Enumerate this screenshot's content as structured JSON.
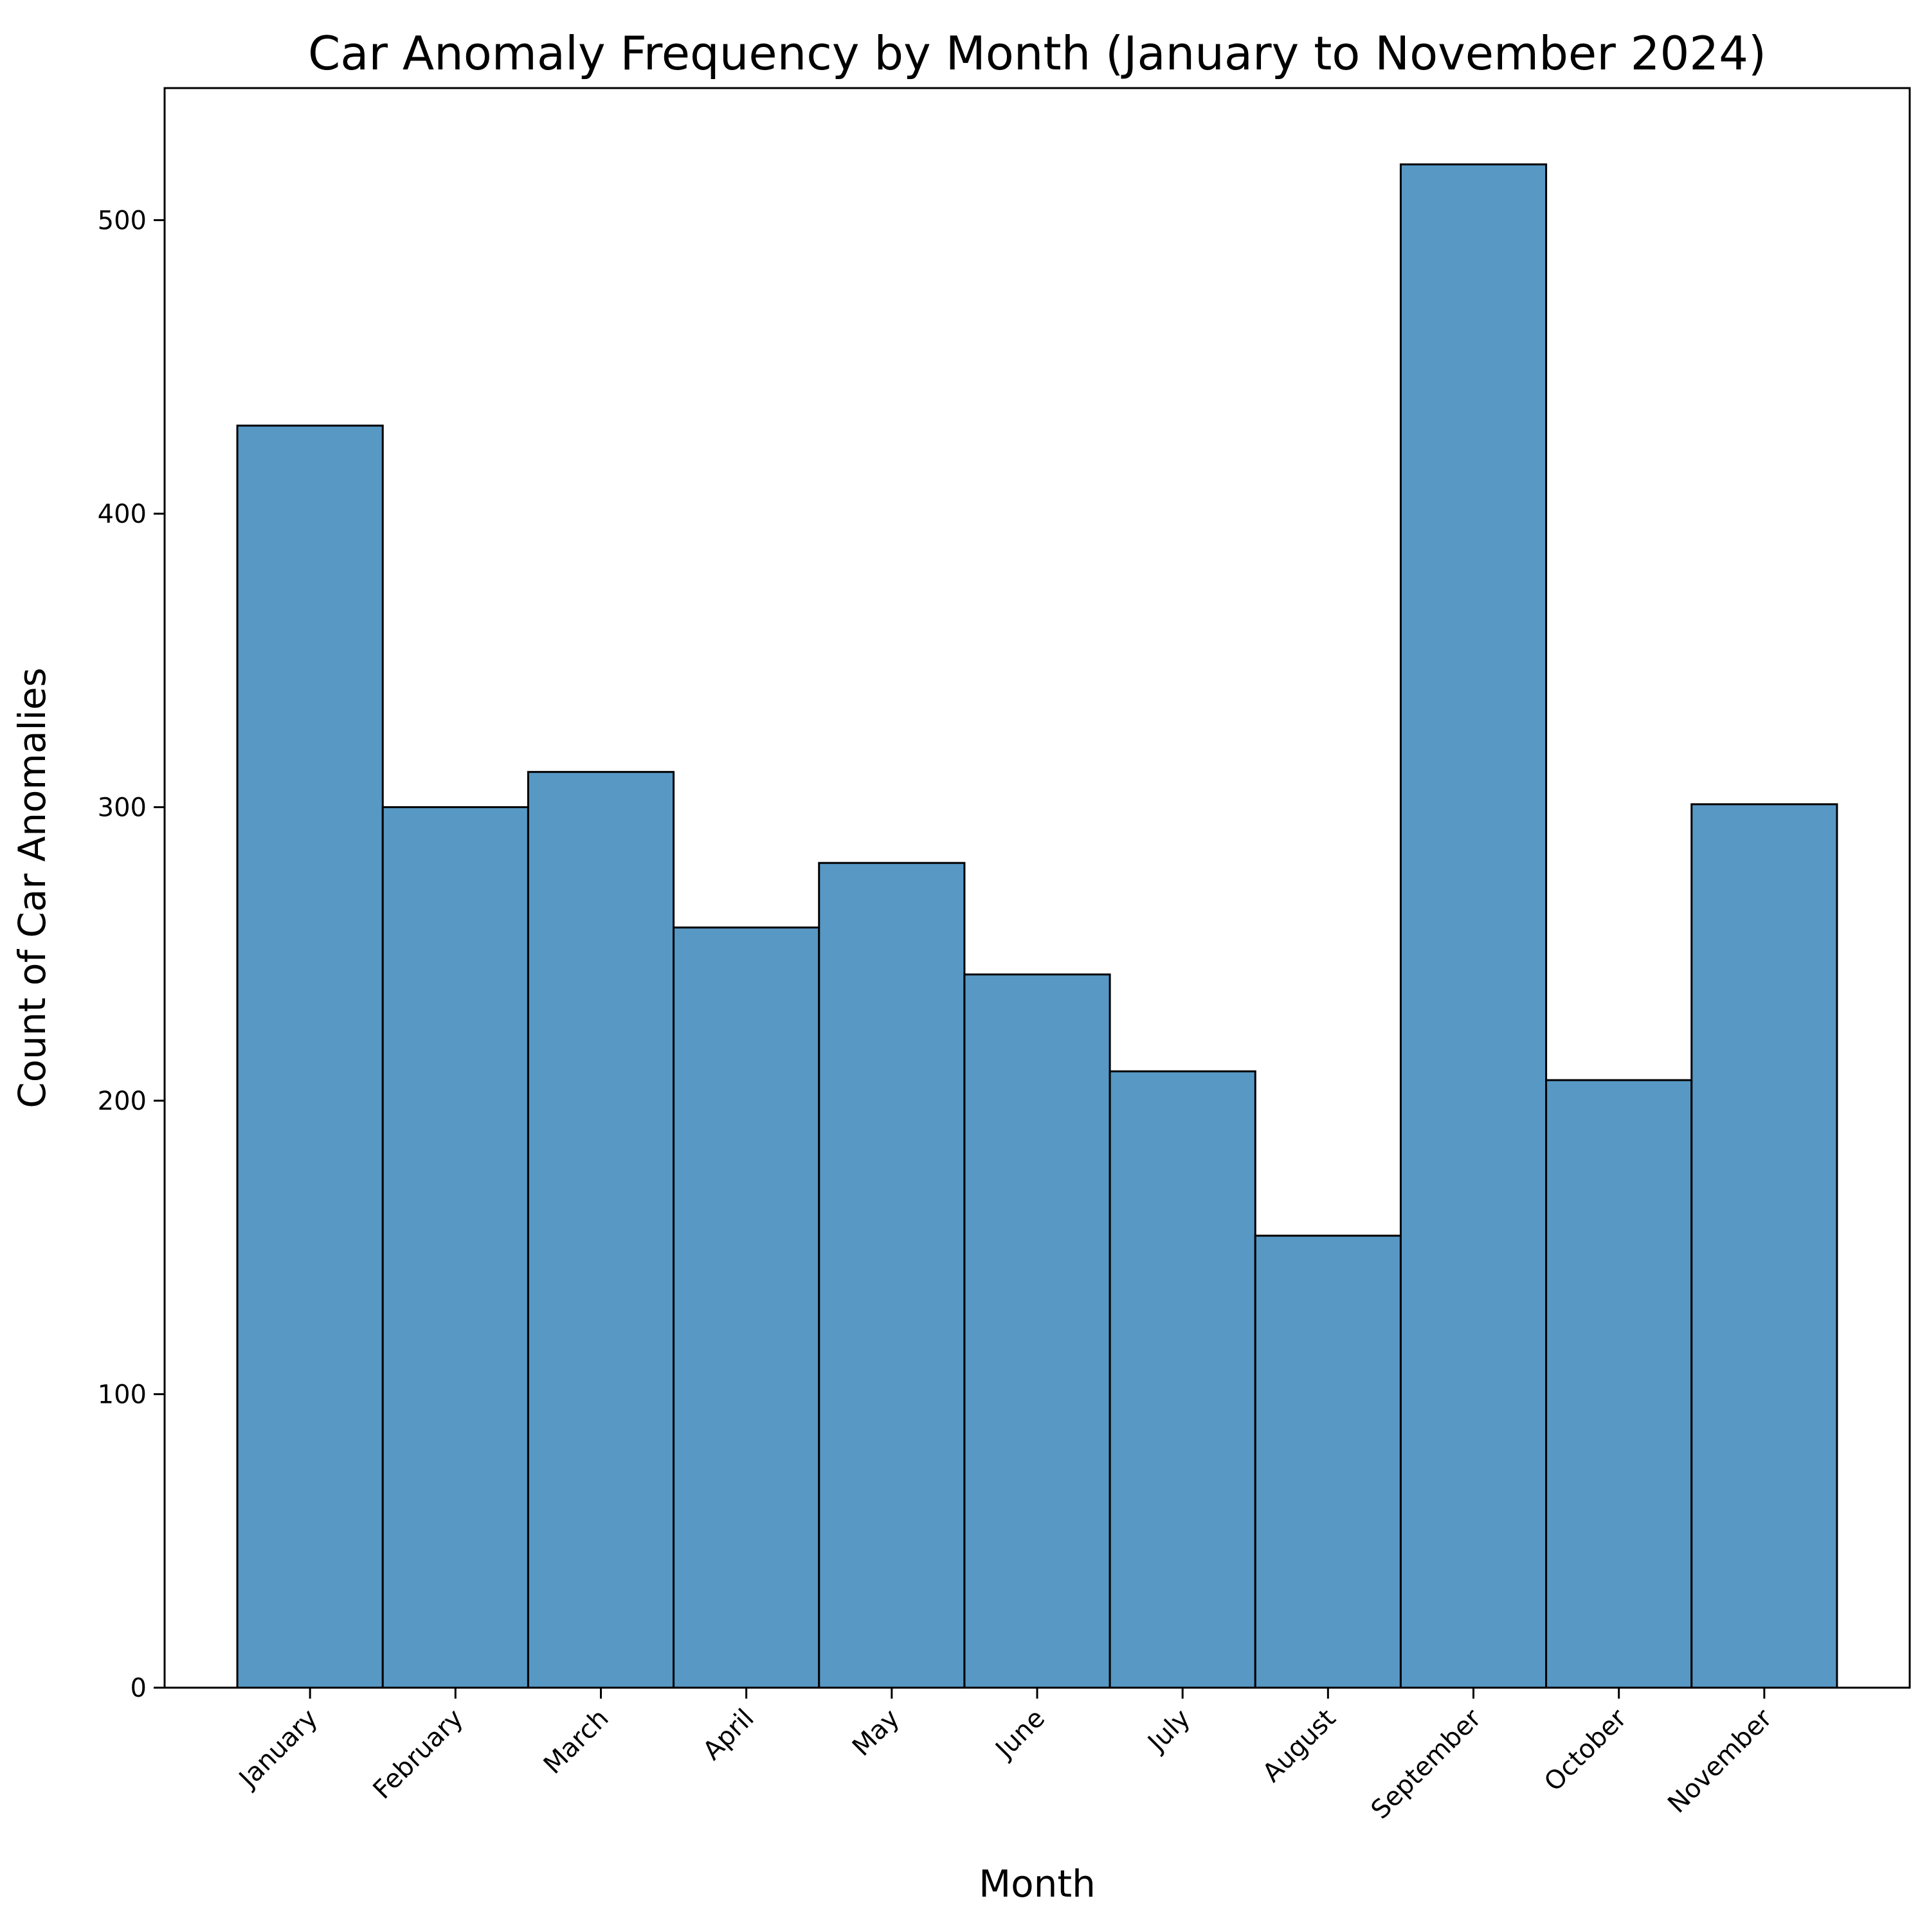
{
  "chart_data": {
    "type": "bar",
    "title": "Car Anomaly Frequency by Month (January to November 2024)",
    "xlabel": "Month",
    "ylabel": "Count of Car Anomalies",
    "categories": [
      "January",
      "February",
      "March",
      "April",
      "May",
      "June",
      "July",
      "August",
      "September",
      "October",
      "November"
    ],
    "values": [
      430,
      300,
      312,
      259,
      281,
      243,
      210,
      154,
      519,
      207,
      301
    ],
    "ylim": [
      0,
      545
    ],
    "yticks": [
      0,
      100,
      200,
      300,
      400,
      500
    ],
    "grid": false,
    "legend": "none",
    "bar_color": "#5798c5",
    "edge_color": "#000000"
  }
}
